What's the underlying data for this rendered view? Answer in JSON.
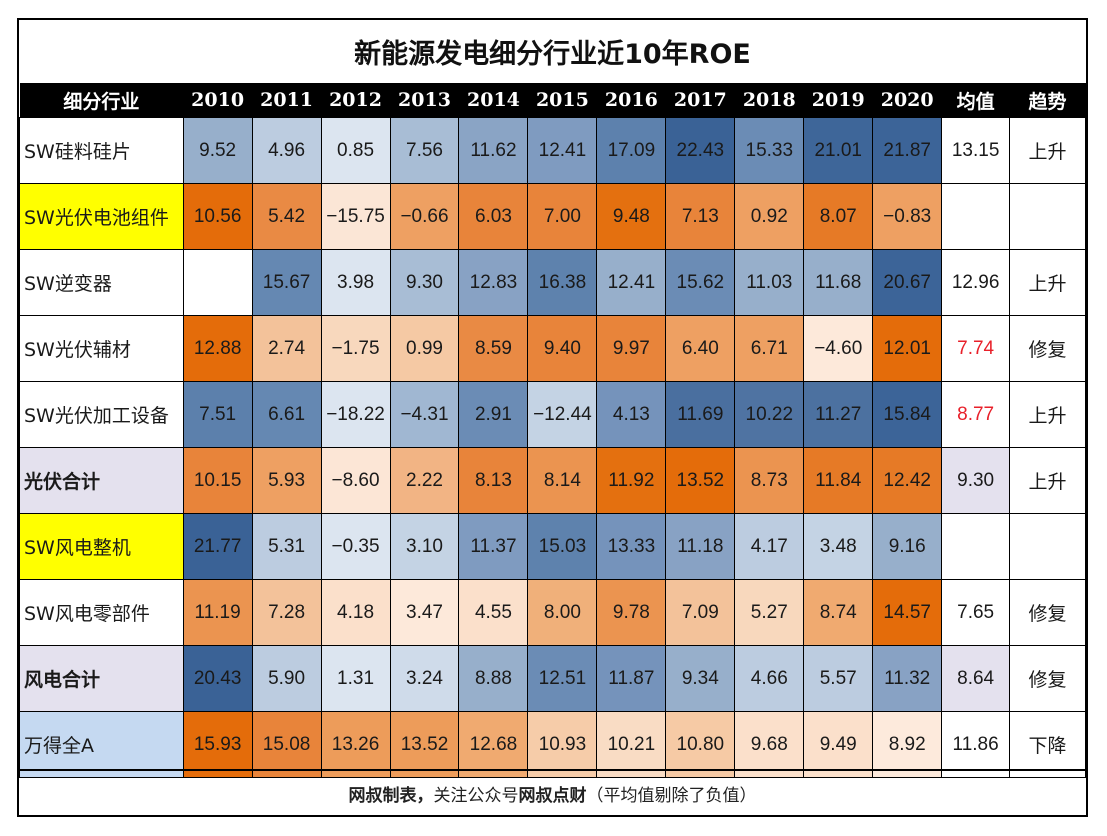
{
  "title": "新能源发电细分行业近10年ROE",
  "header": {
    "label": "细分行业",
    "years": [
      "2010",
      "2011",
      "2012",
      "2013",
      "2014",
      "2015",
      "2016",
      "2017",
      "2018",
      "2019",
      "2020"
    ],
    "avg": "均值",
    "trend": "趋势"
  },
  "rows": [
    {
      "label": "SW硅料硅片",
      "label_bg": "#ffffff",
      "bold": false,
      "values": [
        "9.52",
        "4.96",
        "0.85",
        "7.56",
        "11.62",
        "12.41",
        "17.09",
        "22.43",
        "15.33",
        "21.01",
        "21.87"
      ],
      "colors": [
        "#97afcb",
        "#bccce0",
        "#dce5f0",
        "#a8bdd5",
        "#8aa4c5",
        "#7f9bc0",
        "#5d81ad",
        "#3a6296",
        "#6b8cb5",
        "#3e6699",
        "#3c6498"
      ],
      "avg": "13.15",
      "avg_color": "",
      "avg_bg": "#ffffff",
      "trend": "上升"
    },
    {
      "label": "SW光伏电池组件",
      "label_bg": "#ffff00",
      "bold": false,
      "values": [
        "10.56",
        "5.42",
        "−15.75",
        "−0.66",
        "6.03",
        "7.00",
        "9.48",
        "7.13",
        "0.92",
        "8.07",
        "−0.83"
      ],
      "colors": [
        "#e46c0a",
        "#e98a44",
        "#fbe6d6",
        "#eea062",
        "#e8843a",
        "#e8843a",
        "#e4700f",
        "#e8843a",
        "#eea062",
        "#e67a26",
        "#eea062"
      ],
      "avg": "",
      "avg_color": "",
      "avg_bg": "#ffffff",
      "trend": ""
    },
    {
      "label": "SW逆变器",
      "label_bg": "#ffffff",
      "bold": false,
      "values": [
        "",
        "15.67",
        "3.98",
        "9.30",
        "12.83",
        "16.38",
        "12.41",
        "15.62",
        "11.03",
        "11.68",
        "20.67"
      ],
      "colors": [
        "#ffffff",
        "#6588b2",
        "#dce5f0",
        "#a8bdd5",
        "#88a2c4",
        "#5e82ad",
        "#97afcb",
        "#6b8cb5",
        "#97afcb",
        "#97afcb",
        "#3c6498"
      ],
      "avg": "12.96",
      "avg_color": "",
      "avg_bg": "#ffffff",
      "trend": "上升"
    },
    {
      "label": "SW光伏辅材",
      "label_bg": "#ffffff",
      "bold": false,
      "values": [
        "12.88",
        "2.74",
        "−1.75",
        "0.99",
        "8.59",
        "9.40",
        "9.97",
        "6.40",
        "6.71",
        "−4.60",
        "12.01"
      ],
      "colors": [
        "#e46c0a",
        "#f3c29a",
        "#f8d8bd",
        "#f5c9a4",
        "#e98a44",
        "#e8843a",
        "#e8843a",
        "#eea062",
        "#eea062",
        "#fde9da",
        "#e46c0a"
      ],
      "avg": "7.74",
      "avg_color": "#e8202a",
      "avg_bg": "#ffffff",
      "trend": "修复"
    },
    {
      "label": "SW光伏加工设备",
      "label_bg": "#ffffff",
      "bold": false,
      "values": [
        "7.51",
        "6.61",
        "−18.22",
        "−4.31",
        "2.91",
        "−12.44",
        "4.13",
        "11.69",
        "10.22",
        "11.27",
        "15.84"
      ],
      "colors": [
        "#5c80ac",
        "#6588b2",
        "#dce5f0",
        "#a0b7d2",
        "#6b8cb5",
        "#c4d3e4",
        "#7593bb",
        "#4a6f9f",
        "#4f73a2",
        "#4c71a0",
        "#3c6498"
      ],
      "avg": "8.77",
      "avg_color": "#e8202a",
      "avg_bg": "#ffffff",
      "trend": "上升"
    },
    {
      "label": "光伏合计",
      "label_bg": "#e4e1ee",
      "bold": true,
      "values": [
        "10.15",
        "5.93",
        "−8.60",
        "2.22",
        "8.13",
        "8.14",
        "11.92",
        "13.52",
        "8.73",
        "11.84",
        "12.42"
      ],
      "colors": [
        "#e8843a",
        "#eea062",
        "#fce6d6",
        "#f2b484",
        "#e8843a",
        "#eb9450",
        "#e4700f",
        "#e46c0a",
        "#eb9450",
        "#e67a26",
        "#e67a26"
      ],
      "avg": "9.30",
      "avg_color": "",
      "avg_bg": "#e4e1ee",
      "trend": "上升"
    },
    {
      "label": "SW风电整机",
      "label_bg": "#ffff00",
      "bold": false,
      "values": [
        "21.77",
        "5.31",
        "−0.35",
        "3.10",
        "11.37",
        "15.03",
        "13.33",
        "11.18",
        "4.17",
        "3.48",
        "9.16"
      ],
      "colors": [
        "#3a6296",
        "#bccce0",
        "#dce5f0",
        "#c4d3e4",
        "#7f9bc0",
        "#5e82ad",
        "#7593bb",
        "#88a2c4",
        "#bccce0",
        "#c4d3e4",
        "#97afcb"
      ],
      "avg": "",
      "avg_color": "",
      "avg_bg": "#ffffff",
      "trend": ""
    },
    {
      "label": "SW风电零部件",
      "label_bg": "#ffffff",
      "bold": false,
      "values": [
        "11.19",
        "7.28",
        "4.18",
        "3.47",
        "4.55",
        "8.00",
        "9.78",
        "7.09",
        "5.27",
        "8.74",
        "14.57"
      ],
      "colors": [
        "#eb9450",
        "#f3c29a",
        "#fbe0cb",
        "#fde9da",
        "#fbe0cb",
        "#f0b07a",
        "#eb9450",
        "#f3c29a",
        "#f8d8bd",
        "#f0aa70",
        "#e46c0a"
      ],
      "avg": "7.65",
      "avg_color": "",
      "avg_bg": "#ffffff",
      "trend": "修复"
    },
    {
      "label": "风电合计",
      "label_bg": "#e4e1ee",
      "bold": true,
      "values": [
        "20.43",
        "5.90",
        "1.31",
        "3.24",
        "8.88",
        "12.51",
        "11.87",
        "9.34",
        "4.66",
        "5.57",
        "11.32"
      ],
      "colors": [
        "#3a6296",
        "#bccce0",
        "#dce5f0",
        "#cfdbea",
        "#97afcb",
        "#6b8cb5",
        "#7593bb",
        "#97afcb",
        "#bccce0",
        "#bccce0",
        "#88a2c4"
      ],
      "avg": "8.64",
      "avg_color": "",
      "avg_bg": "#e4e1ee",
      "trend": "修复"
    },
    {
      "label": "万得全A",
      "label_bg": "#c5d9f1",
      "bold": false,
      "values": [
        "15.93",
        "15.08",
        "13.26",
        "13.52",
        "12.68",
        "10.93",
        "10.21",
        "10.80",
        "9.68",
        "9.49",
        "8.92"
      ],
      "colors": [
        "#e46c0a",
        "#e8843a",
        "#ed9c5a",
        "#ed9c5a",
        "#f0aa70",
        "#f6cca9",
        "#f9dcc4",
        "#f6caa5",
        "#fbe0cb",
        "#fbe0cb",
        "#fdeadc"
      ],
      "avg": "11.86",
      "avg_color": "",
      "avg_bg": "#ffffff",
      "trend": "下降"
    }
  ],
  "footer": {
    "part1": "网叔制表，",
    "part2": "关注公众号",
    "part3": "网叔点财",
    "part4": "（平均值剔除了负值）"
  }
}
